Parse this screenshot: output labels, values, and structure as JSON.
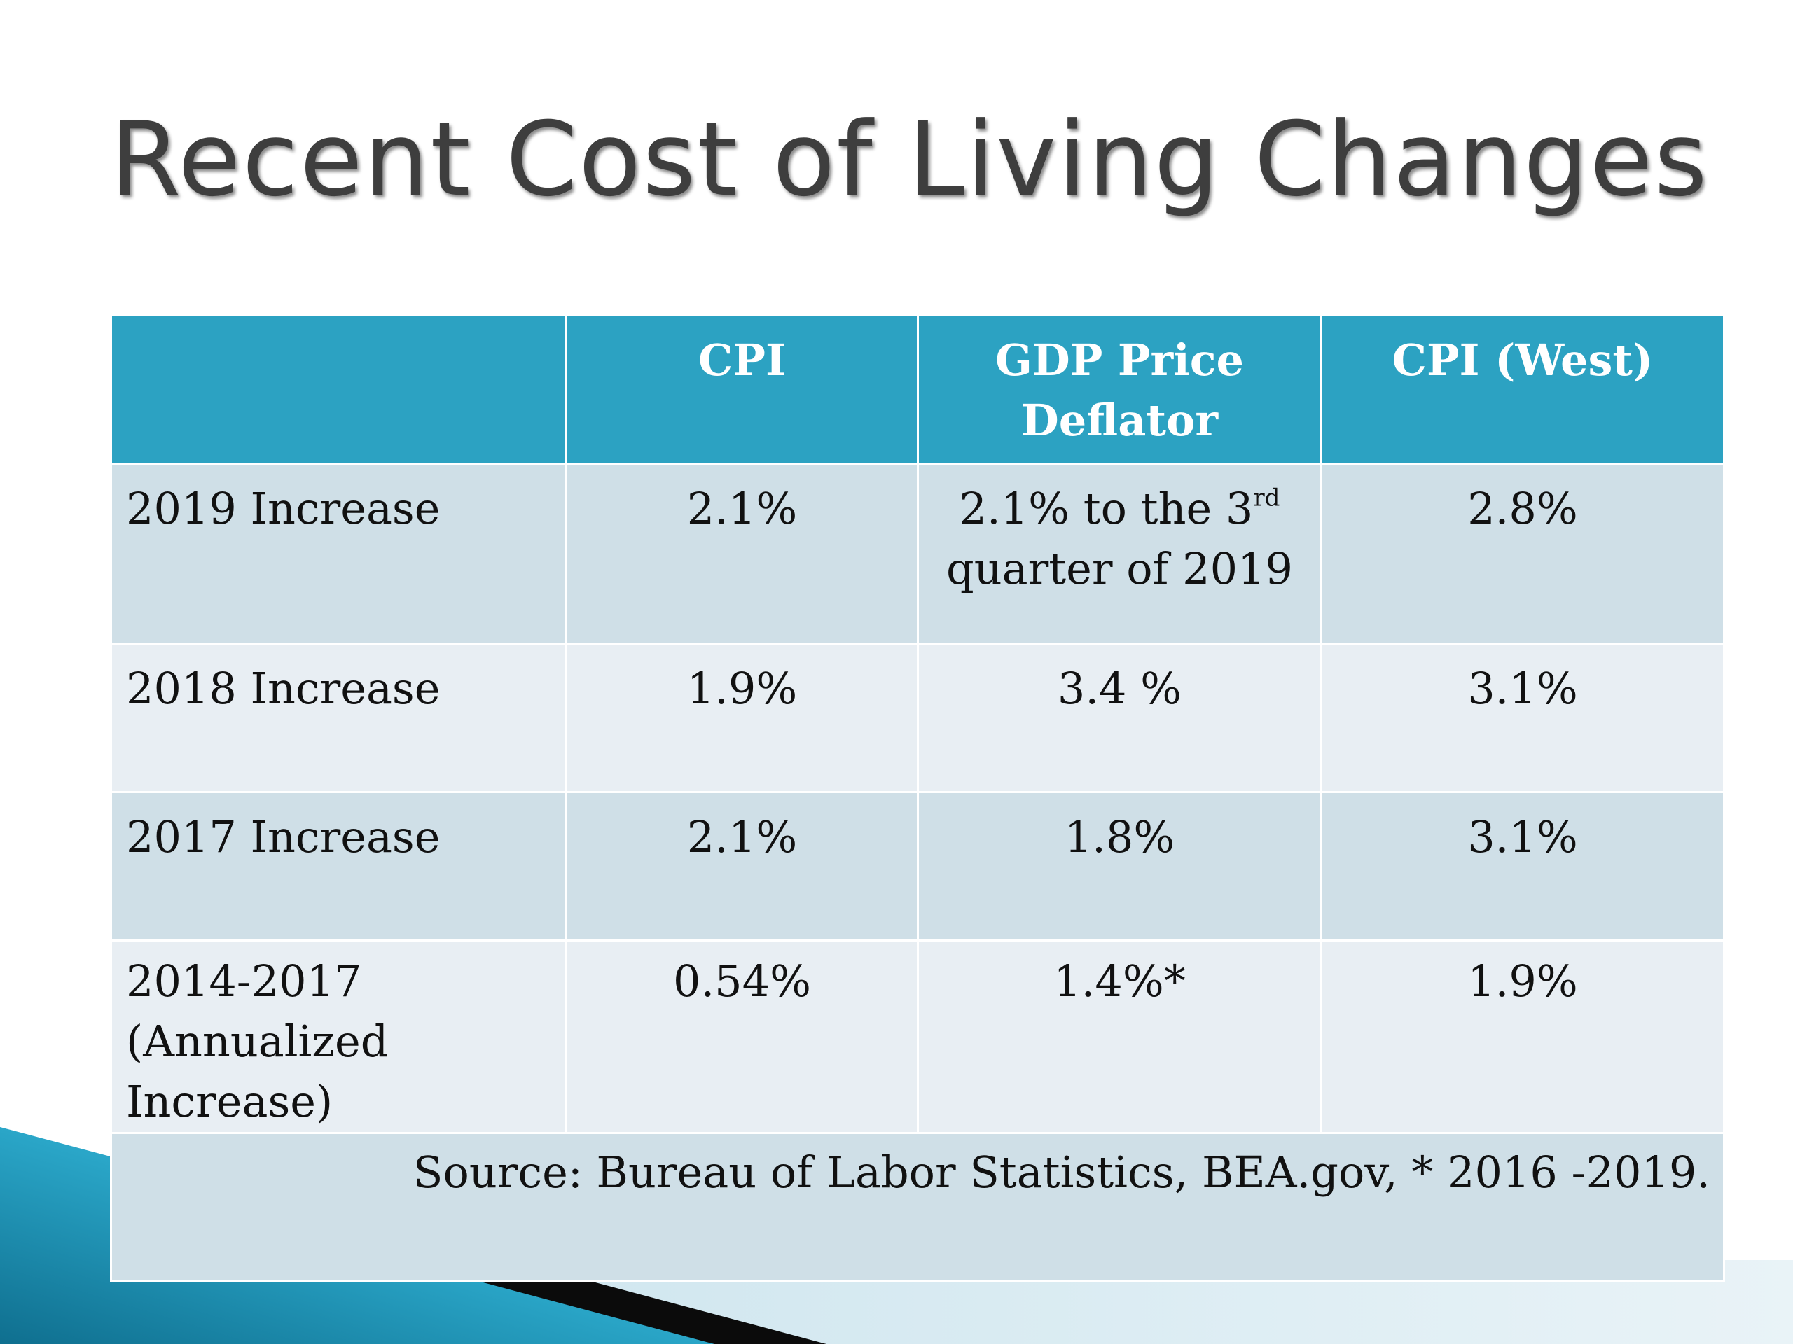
{
  "slide": {
    "title": "Recent Cost of Living Changes"
  },
  "table": {
    "headers": [
      "",
      "CPI",
      "GDP Price Deflator",
      "CPI (West)"
    ],
    "rows": [
      {
        "label": "2019 Increase",
        "cpi": "2.1%",
        "gdp_value": "2.1% to the 3",
        "gdp_superscript": "rd",
        "gdp_suffix": "quarter of 2019",
        "cpi_west": "2.8%"
      },
      {
        "label": "2018 Increase",
        "cpi": "1.9%",
        "gdp": "3.4 %",
        "cpi_west": "3.1%"
      },
      {
        "label": "2017 Increase",
        "cpi": "2.1%",
        "gdp": "1.8%",
        "cpi_west": "3.1%"
      },
      {
        "label": "2014-2017 (Annualized Increase)",
        "cpi": "0.54%",
        "gdp": "1.4%*",
        "cpi_west": "1.9%"
      }
    ],
    "source": "Source:  Bureau of Labor Statistics, BEA.gov, * 2016 -2019."
  },
  "colors": {
    "header_bg": "#2ca2c2",
    "row_dark": "#cfdfe7",
    "row_light": "#e8eef3",
    "title_text": "#3e3e3e",
    "accent_teal": "#1b8cad"
  }
}
